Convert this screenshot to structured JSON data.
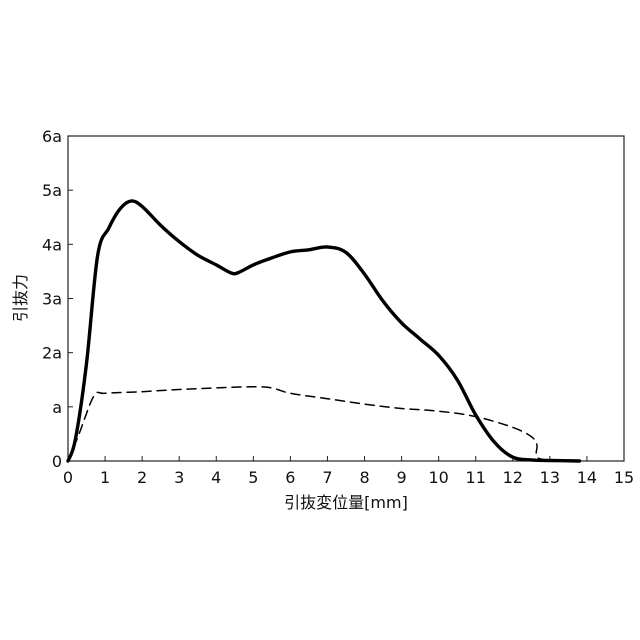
{
  "chart_data": {
    "type": "line",
    "xlabel": "引抜変位量[mm]",
    "ylabel": "引抜力",
    "xlim": [
      0,
      15
    ],
    "ylim": [
      0,
      6
    ],
    "x_ticks": [
      "0",
      "1",
      "2",
      "3",
      "4",
      "5",
      "6",
      "7",
      "8",
      "9",
      "10",
      "11",
      "12",
      "13",
      "14",
      "15"
    ],
    "y_ticks": [
      "0",
      "a",
      "2a",
      "3a",
      "4a",
      "5a",
      "6a"
    ],
    "grid": false,
    "series": [
      {
        "style": "solid",
        "points": [
          [
            0,
            0
          ],
          [
            0.2,
            0.4
          ],
          [
            0.5,
            1.8
          ],
          [
            0.8,
            3.8
          ],
          [
            1.1,
            4.3
          ],
          [
            1.4,
            4.65
          ],
          [
            1.7,
            4.8
          ],
          [
            2.0,
            4.7
          ],
          [
            2.5,
            4.35
          ],
          [
            3.0,
            4.05
          ],
          [
            3.5,
            3.8
          ],
          [
            4.0,
            3.62
          ],
          [
            4.4,
            3.47
          ],
          [
            4.6,
            3.48
          ],
          [
            5.0,
            3.62
          ],
          [
            5.5,
            3.75
          ],
          [
            6.0,
            3.86
          ],
          [
            6.5,
            3.9
          ],
          [
            7.0,
            3.95
          ],
          [
            7.5,
            3.85
          ],
          [
            8.0,
            3.45
          ],
          [
            8.5,
            2.95
          ],
          [
            9.0,
            2.55
          ],
          [
            9.5,
            2.25
          ],
          [
            10.0,
            1.95
          ],
          [
            10.5,
            1.5
          ],
          [
            11.0,
            0.85
          ],
          [
            11.5,
            0.35
          ],
          [
            12.0,
            0.07
          ],
          [
            12.5,
            0.02
          ],
          [
            13.0,
            0.01
          ],
          [
            13.8,
            0.0
          ]
        ]
      },
      {
        "style": "dashed",
        "points": [
          [
            0,
            0
          ],
          [
            0.3,
            0.5
          ],
          [
            0.7,
            1.2
          ],
          [
            1.0,
            1.25
          ],
          [
            2.0,
            1.28
          ],
          [
            3.0,
            1.32
          ],
          [
            4.0,
            1.35
          ],
          [
            5.0,
            1.37
          ],
          [
            5.5,
            1.35
          ],
          [
            6.0,
            1.25
          ],
          [
            7.0,
            1.15
          ],
          [
            8.0,
            1.05
          ],
          [
            9.0,
            0.97
          ],
          [
            10.0,
            0.92
          ],
          [
            11.0,
            0.82
          ],
          [
            12.0,
            0.62
          ],
          [
            12.5,
            0.45
          ],
          [
            12.65,
            0.3
          ],
          [
            12.7,
            0.05
          ],
          [
            13.5,
            0.01
          ]
        ]
      }
    ]
  }
}
